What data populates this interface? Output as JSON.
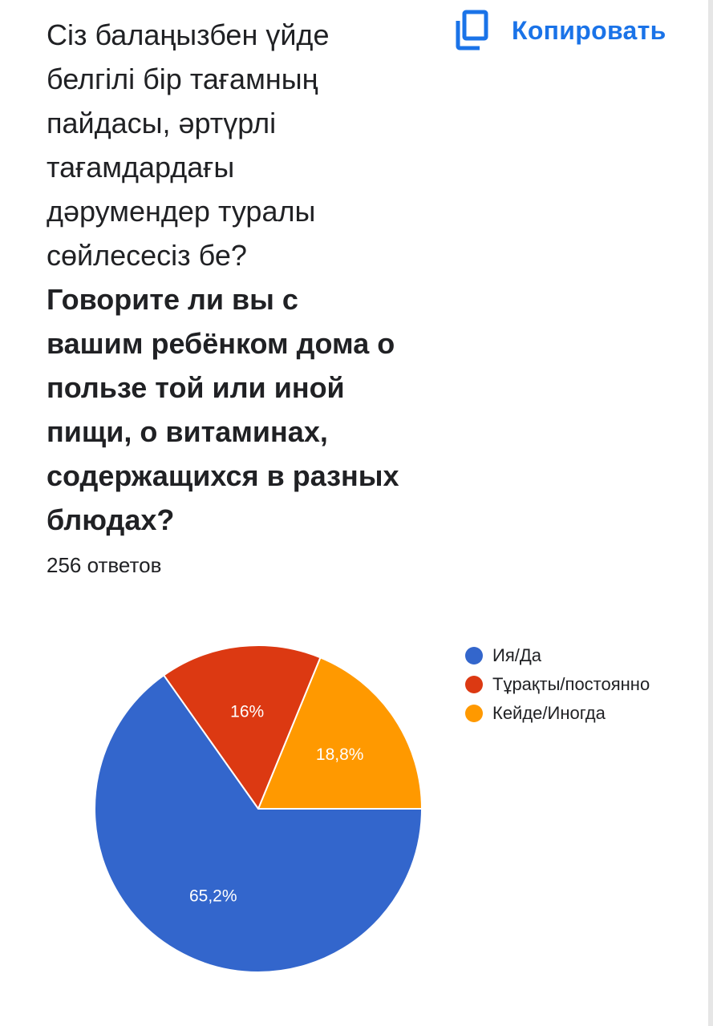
{
  "question": {
    "kazakh_text": "Сіз балаңызбен үйде\nбелгілі бір тағамның\nпайдасы, әртүрлі\nтағамдардағы\nдәрумендер туралы\nсөйлесесіз бе?",
    "russian_text": "Говорите ли вы с\nвашим ребёнком дома о\nпользе той или иной\nпищи, о витаминах,\nсодержащихся в разных\nблюдах?"
  },
  "copy_button": {
    "label": "Копировать",
    "icon": "copy-icon",
    "color": "#1a73e8"
  },
  "responses_count_text": "256 ответов",
  "chart_data": {
    "type": "pie",
    "title": "",
    "slices": [
      {
        "name": "Ия/Да",
        "value": 65.2,
        "label": "65,2%",
        "color": "#3366cc"
      },
      {
        "name": "Тұрақты/постоянно",
        "value": 16.0,
        "label": "16%",
        "color": "#dc3912"
      },
      {
        "name": "Кейде/Иногда",
        "value": 18.8,
        "label": "18,8%",
        "color": "#ff9900"
      }
    ],
    "legend_placement": "right"
  }
}
